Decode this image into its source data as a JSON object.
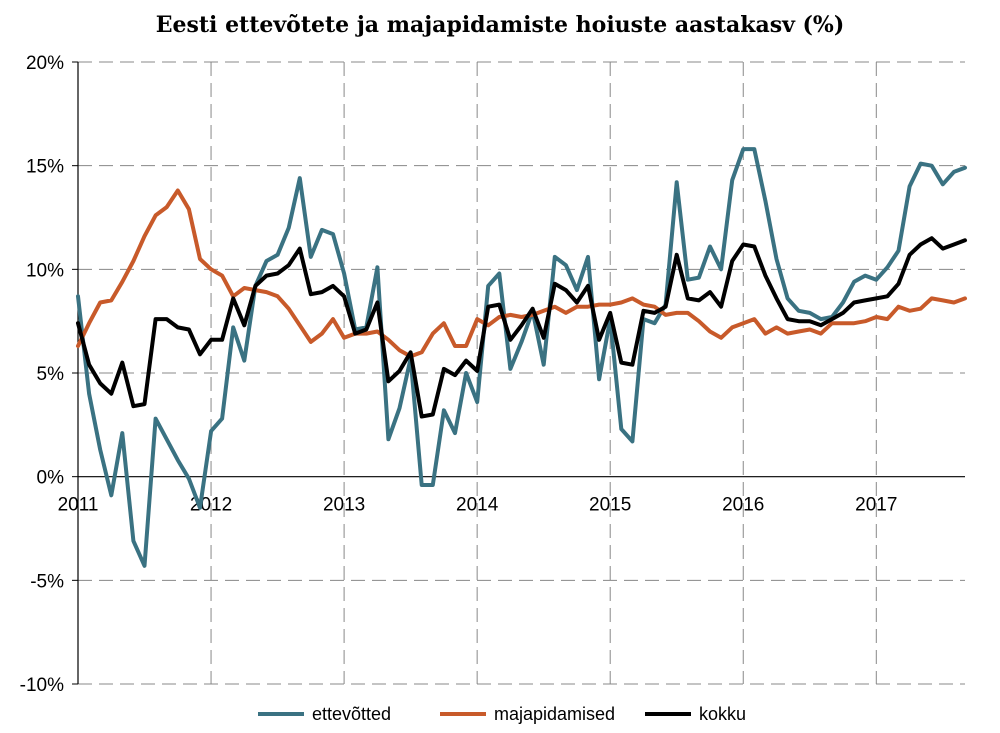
{
  "chart_data": {
    "type": "line",
    "title": "Eesti ettevõtete ja majapidamiste hoiuste aastakasv (%)",
    "xlabel": "",
    "ylabel": "",
    "x_start": "2011-01",
    "x_end": "2017-08",
    "ylim": [
      -10,
      20
    ],
    "y_ticks": [
      -10,
      -5,
      0,
      5,
      10,
      15,
      20
    ],
    "y_tick_labels": [
      "-10%",
      "-5%",
      "0%",
      "5%",
      "10%",
      "15%",
      "20%"
    ],
    "x_tick_labels": [
      "2011",
      "2012",
      "2013",
      "2014",
      "2015",
      "2016",
      "2017"
    ],
    "grid": {
      "horizontal": true,
      "vertical": true,
      "style": "dashed"
    },
    "legend_position": "bottom",
    "series": [
      {
        "name": "ettevõtted",
        "color": "#3a7282",
        "values": [
          8.7,
          4.0,
          1.3,
          -0.9,
          2.1,
          -3.1,
          -4.3,
          2.8,
          1.8,
          0.8,
          -0.1,
          -1.5,
          2.2,
          2.8,
          7.2,
          5.6,
          9.2,
          10.4,
          10.7,
          12.0,
          14.4,
          10.6,
          11.9,
          11.7,
          9.8,
          7.1,
          7.2,
          10.1,
          1.8,
          3.3,
          5.7,
          -0.4,
          -0.4,
          3.2,
          2.1,
          5.0,
          3.6,
          9.2,
          9.8,
          5.2,
          6.5,
          8.0,
          5.4,
          10.6,
          10.2,
          9.0,
          10.6,
          4.7,
          7.6,
          2.3,
          1.7,
          7.6,
          7.4,
          8.3,
          14.2,
          9.5,
          9.6,
          11.1,
          10.0,
          14.3,
          15.8,
          15.8,
          13.3,
          10.5,
          8.6,
          8.0,
          7.9,
          7.6,
          7.7,
          8.4,
          9.4,
          9.7,
          9.5,
          10.1,
          10.9,
          14.0,
          15.1,
          15.0,
          14.1,
          14.7,
          14.9
        ]
      },
      {
        "name": "majapidamised",
        "color": "#c85a2a",
        "values": [
          6.3,
          7.4,
          8.4,
          8.5,
          9.4,
          10.4,
          11.6,
          12.6,
          13.0,
          13.8,
          12.9,
          10.5,
          10.0,
          9.7,
          8.7,
          9.1,
          9.0,
          8.9,
          8.7,
          8.1,
          7.3,
          6.5,
          6.9,
          7.6,
          6.7,
          6.9,
          6.9,
          7.0,
          6.6,
          6.1,
          5.8,
          6.0,
          6.9,
          7.4,
          6.3,
          6.3,
          7.6,
          7.3,
          7.7,
          7.8,
          7.7,
          7.8,
          8.0,
          8.2,
          7.9,
          8.2,
          8.2,
          8.3,
          8.3,
          8.4,
          8.6,
          8.3,
          8.2,
          7.8,
          7.9,
          7.9,
          7.5,
          7.0,
          6.7,
          7.2,
          7.4,
          7.6,
          6.9,
          7.2,
          6.9,
          7.0,
          7.1,
          6.9,
          7.4,
          7.4,
          7.4,
          7.5,
          7.7,
          7.6,
          8.2,
          8.0,
          8.1,
          8.6,
          8.5,
          8.4,
          8.6
        ]
      },
      {
        "name": "kokku",
        "color": "#000000",
        "values": [
          7.4,
          5.4,
          4.5,
          4.0,
          5.5,
          3.4,
          3.5,
          7.6,
          7.6,
          7.2,
          7.1,
          5.9,
          6.6,
          6.6,
          8.6,
          7.3,
          9.2,
          9.7,
          9.8,
          10.2,
          11.0,
          8.8,
          8.9,
          9.2,
          8.7,
          6.9,
          7.1,
          8.4,
          4.6,
          5.1,
          6.0,
          2.9,
          3.0,
          5.2,
          4.9,
          5.6,
          5.1,
          8.2,
          8.3,
          6.6,
          7.3,
          8.1,
          6.7,
          9.3,
          9.0,
          8.4,
          9.2,
          6.6,
          7.9,
          5.5,
          5.4,
          8.0,
          7.9,
          8.2,
          10.7,
          8.6,
          8.5,
          8.9,
          8.2,
          10.4,
          11.2,
          11.1,
          9.7,
          8.6,
          7.6,
          7.5,
          7.5,
          7.3,
          7.6,
          7.9,
          8.4,
          8.5,
          8.6,
          8.7,
          9.3,
          10.7,
          11.2,
          11.5,
          11.0,
          11.2,
          11.4
        ]
      }
    ]
  }
}
